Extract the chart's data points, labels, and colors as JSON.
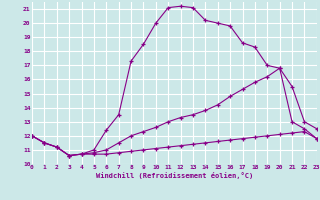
{
  "xlabel": "Windchill (Refroidissement éolien,°C)",
  "bg_color": "#cce8e8",
  "line_color": "#880088",
  "grid_color": "#ffffff",
  "xmin": 0,
  "xmax": 23,
  "ymin": 10,
  "ymax": 21.5,
  "line1_x": [
    0,
    1,
    2,
    3,
    4,
    5,
    6,
    7,
    8,
    9,
    10,
    11,
    12,
    13,
    14,
    15,
    16,
    17,
    18,
    19,
    20,
    21,
    22,
    23
  ],
  "line1_y": [
    12,
    11.5,
    11.2,
    10.6,
    10.7,
    10.7,
    10.7,
    10.8,
    10.9,
    11.0,
    11.1,
    11.2,
    11.3,
    11.4,
    11.5,
    11.6,
    11.7,
    11.8,
    11.9,
    12.0,
    12.1,
    12.2,
    12.3,
    11.8
  ],
  "line2_x": [
    0,
    1,
    2,
    3,
    4,
    5,
    6,
    7,
    8,
    9,
    10,
    11,
    12,
    13,
    14,
    15,
    16,
    17,
    18,
    19,
    20,
    21,
    22,
    23
  ],
  "line2_y": [
    12,
    11.5,
    11.2,
    10.6,
    10.7,
    10.8,
    11.0,
    11.5,
    12.0,
    12.3,
    12.6,
    13.0,
    13.3,
    13.5,
    13.8,
    14.2,
    14.8,
    15.3,
    15.8,
    16.2,
    16.8,
    13.0,
    12.5,
    11.8
  ],
  "line3_x": [
    0,
    1,
    2,
    3,
    4,
    5,
    6,
    7,
    8,
    9,
    10,
    11,
    12,
    13,
    14,
    15,
    16,
    17,
    18,
    19,
    20,
    21,
    22,
    23
  ],
  "line3_y": [
    12,
    11.5,
    11.2,
    10.6,
    10.7,
    11.0,
    12.4,
    13.5,
    17.3,
    18.5,
    20.0,
    21.1,
    21.2,
    21.1,
    20.2,
    20.0,
    19.8,
    18.6,
    18.3,
    17.0,
    16.8,
    15.5,
    13.0,
    12.5
  ],
  "xticks": [
    0,
    1,
    2,
    3,
    4,
    5,
    6,
    7,
    8,
    9,
    10,
    11,
    12,
    13,
    14,
    15,
    16,
    17,
    18,
    19,
    20,
    21,
    22,
    23
  ],
  "yticks": [
    10,
    11,
    12,
    13,
    14,
    15,
    16,
    17,
    18,
    19,
    20,
    21
  ]
}
